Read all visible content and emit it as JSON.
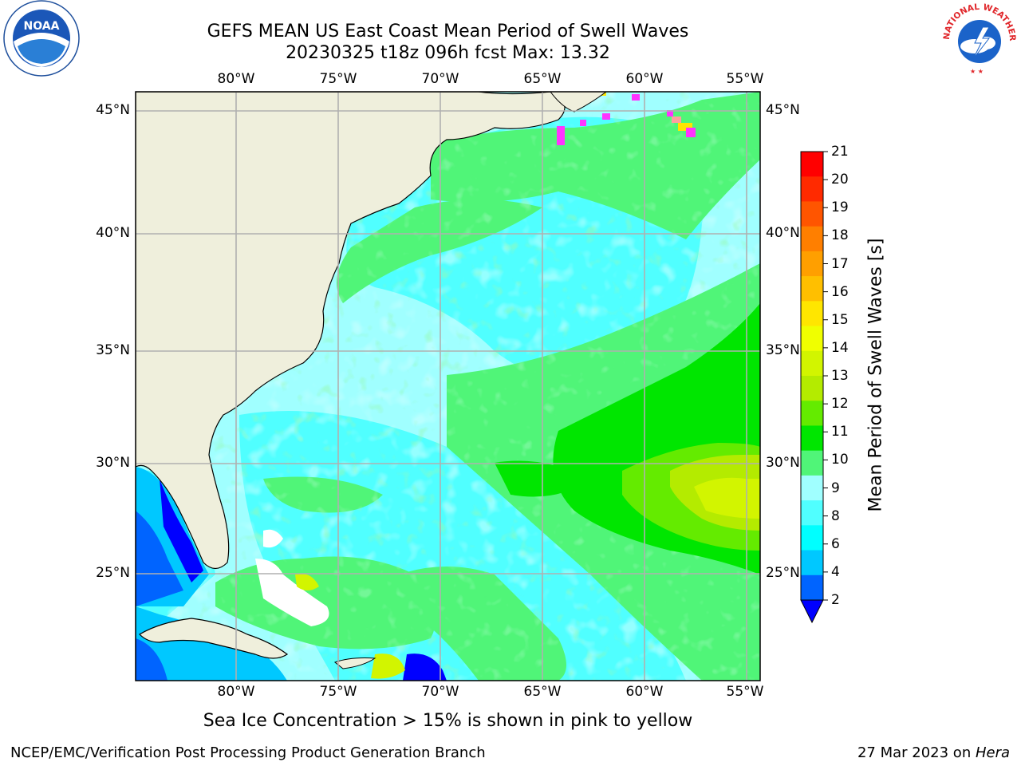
{
  "title": {
    "line1": "GEFS MEAN US East Coast Mean Period of Swell Waves",
    "line2": "20230325 t18z 096h fcst   Max: 13.32"
  },
  "map": {
    "lon_ticks": [
      "80°W",
      "75°W",
      "70°W",
      "65°W",
      "60°W",
      "55°W"
    ],
    "lat_ticks": [
      "45°N",
      "40°N",
      "35°N",
      "30°N",
      "25°N"
    ],
    "land_color": "#efefdc",
    "gridline_color": "#b0b0b0"
  },
  "colorbar": {
    "label": "Mean Period of Swell Waves [s]",
    "ticks": [
      "21",
      "20",
      "19",
      "18",
      "17",
      "16",
      "15",
      "14",
      "13",
      "12",
      "11",
      "10",
      "9",
      "8",
      "6",
      "4",
      "2"
    ],
    "colors_top_to_bottom": [
      "#ff0000",
      "#ff2a00",
      "#ff5500",
      "#ff7f00",
      "#ff9f00",
      "#ffbf00",
      "#ffe600",
      "#f0ff00",
      "#d2f500",
      "#b4eb00",
      "#64eb00",
      "#00e600",
      "#50f578",
      "#a0ffff",
      "#50ffff",
      "#00ffff",
      "#00c8ff",
      "#0064ff"
    ],
    "under_color": "#0000ff"
  },
  "logos": {
    "noaa_text": "NOAA",
    "nws_text": "NATIONAL WEATHER SERVICE"
  },
  "footer": {
    "ice_note": "Sea Ice Concentration > 15% is shown in pink to yellow",
    "left": "NCEP/EMC/Verification Post Processing Product Generation Branch",
    "right_date": "27 Mar 2023 on ",
    "right_machine": "Hera"
  }
}
